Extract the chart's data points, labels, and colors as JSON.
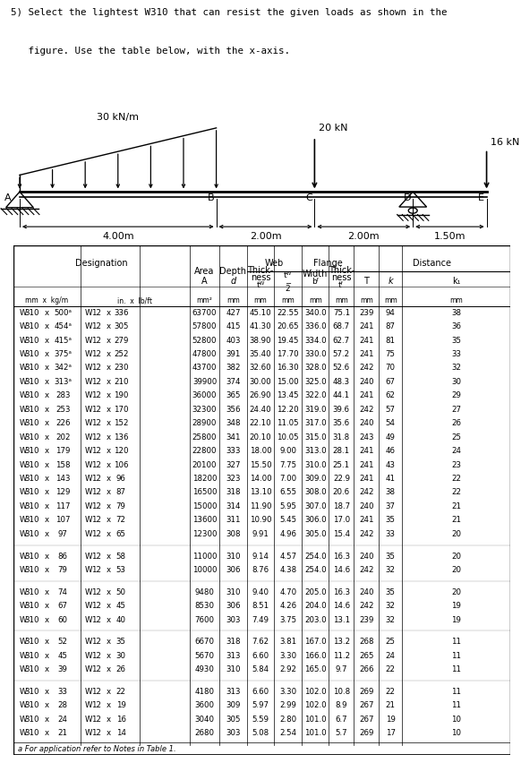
{
  "title_line1": "5) Select the lightest W310 that can resist the given loads as shown in the",
  "title_line2": "   figure. Use the table below, with the x-axis.",
  "dist_load_label": "30 kN/m",
  "load_20kN": "20 kN",
  "load_16kN": "16 kN",
  "spans": [
    "4.00m",
    "2.00m",
    "2.00m",
    "1.50m"
  ],
  "beam_labels": [
    "A",
    "B",
    "C",
    "D",
    "E"
  ],
  "footnote": "a For application refer to Notes in Table 1.",
  "group_breaks": [
    16,
    18,
    21,
    24
  ],
  "table_data": [
    [
      "W",
      "310",
      "x",
      "500ᵃ",
      "W",
      "12",
      "x",
      "336",
      "63700",
      "427",
      "45.10",
      "22.55",
      "340.0",
      "75.1",
      "239",
      "94",
      "38"
    ],
    [
      "W",
      "310",
      "x",
      "454ᵃ",
      "W",
      "12",
      "x",
      "305",
      "57800",
      "415",
      "41.30",
      "20.65",
      "336.0",
      "68.7",
      "241",
      "87",
      "36"
    ],
    [
      "W",
      "310",
      "x",
      "415ᵃ",
      "W",
      "12",
      "x",
      "279",
      "52800",
      "403",
      "38.90",
      "19.45",
      "334.0",
      "62.7",
      "241",
      "81",
      "35"
    ],
    [
      "W",
      "310",
      "x",
      "375ᵃ",
      "W",
      "12",
      "x",
      "252",
      "47800",
      "391",
      "35.40",
      "17.70",
      "330.0",
      "57.2",
      "241",
      "75",
      "33"
    ],
    [
      "W",
      "310",
      "x",
      "342ᵃ",
      "W",
      "12",
      "x",
      "230",
      "43700",
      "382",
      "32.60",
      "16.30",
      "328.0",
      "52.6",
      "242",
      "70",
      "32"
    ],
    [
      "W",
      "310",
      "x",
      "313ᵃ",
      "W",
      "12",
      "x",
      "210",
      "39900",
      "374",
      "30.00",
      "15.00",
      "325.0",
      "48.3",
      "240",
      "67",
      "30"
    ],
    [
      "W",
      "310",
      "x",
      "283",
      "W",
      "12",
      "x",
      "190",
      "36000",
      "365",
      "26.90",
      "13.45",
      "322.0",
      "44.1",
      "241",
      "62",
      "29"
    ],
    [
      "W",
      "310",
      "x",
      "253",
      "W",
      "12",
      "x",
      "170",
      "32300",
      "356",
      "24.40",
      "12.20",
      "319.0",
      "39.6",
      "242",
      "57",
      "27"
    ],
    [
      "W",
      "310",
      "x",
      "226",
      "W",
      "12",
      "x",
      "152",
      "28900",
      "348",
      "22.10",
      "11.05",
      "317.0",
      "35.6",
      "240",
      "54",
      "26"
    ],
    [
      "W",
      "310",
      "x",
      "202",
      "W",
      "12",
      "x",
      "136",
      "25800",
      "341",
      "20.10",
      "10.05",
      "315.0",
      "31.8",
      "243",
      "49",
      "25"
    ],
    [
      "W",
      "310",
      "x",
      "179",
      "W",
      "12",
      "x",
      "120",
      "22800",
      "333",
      "18.00",
      "9.00",
      "313.0",
      "28.1",
      "241",
      "46",
      "24"
    ],
    [
      "W",
      "310",
      "x",
      "158",
      "W",
      "12",
      "x",
      "106",
      "20100",
      "327",
      "15.50",
      "7.75",
      "310.0",
      "25.1",
      "241",
      "43",
      "23"
    ],
    [
      "W",
      "310",
      "x",
      "143",
      "W",
      "12",
      "x",
      "96",
      "18200",
      "323",
      "14.00",
      "7.00",
      "309.0",
      "22.9",
      "241",
      "41",
      "22"
    ],
    [
      "W",
      "310",
      "x",
      "129",
      "W",
      "12",
      "x",
      "87",
      "16500",
      "318",
      "13.10",
      "6.55",
      "308.0",
      "20.6",
      "242",
      "38",
      "22"
    ],
    [
      "W",
      "310",
      "x",
      "117",
      "W",
      "12",
      "x",
      "79",
      "15000",
      "314",
      "11.90",
      "5.95",
      "307.0",
      "18.7",
      "240",
      "37",
      "21"
    ],
    [
      "W",
      "310",
      "x",
      "107",
      "W",
      "12",
      "x",
      "72",
      "13600",
      "311",
      "10.90",
      "5.45",
      "306.0",
      "17.0",
      "241",
      "35",
      "21"
    ],
    [
      "W",
      "310",
      "x",
      "97",
      "W",
      "12",
      "x",
      "65",
      "12300",
      "308",
      "9.91",
      "4.96",
      "305.0",
      "15.4",
      "242",
      "33",
      "20"
    ],
    [
      "W",
      "310",
      "x",
      "86",
      "W",
      "12",
      "x",
      "58",
      "11000",
      "310",
      "9.14",
      "4.57",
      "254.0",
      "16.3",
      "240",
      "35",
      "20"
    ],
    [
      "W",
      "310",
      "x",
      "79",
      "W",
      "12",
      "x",
      "53",
      "10000",
      "306",
      "8.76",
      "4.38",
      "254.0",
      "14.6",
      "242",
      "32",
      "20"
    ],
    [
      "W",
      "310",
      "x",
      "74",
      "W",
      "12",
      "x",
      "50",
      "9480",
      "310",
      "9.40",
      "4.70",
      "205.0",
      "16.3",
      "240",
      "35",
      "20"
    ],
    [
      "W",
      "310",
      "x",
      "67",
      "W",
      "12",
      "x",
      "45",
      "8530",
      "306",
      "8.51",
      "4.26",
      "204.0",
      "14.6",
      "242",
      "32",
      "19"
    ],
    [
      "W",
      "310",
      "x",
      "60",
      "W",
      "12",
      "x",
      "40",
      "7600",
      "303",
      "7.49",
      "3.75",
      "203.0",
      "13.1",
      "239",
      "32",
      "19"
    ],
    [
      "W",
      "310",
      "x",
      "52",
      "W",
      "12",
      "x",
      "35",
      "6670",
      "318",
      "7.62",
      "3.81",
      "167.0",
      "13.2",
      "268",
      "25",
      "11"
    ],
    [
      "W",
      "310",
      "x",
      "45",
      "W",
      "12",
      "x",
      "30",
      "5670",
      "313",
      "6.60",
      "3.30",
      "166.0",
      "11.2",
      "265",
      "24",
      "11"
    ],
    [
      "W",
      "310",
      "x",
      "39",
      "W",
      "12",
      "x",
      "26",
      "4930",
      "310",
      "5.84",
      "2.92",
      "165.0",
      "9.7",
      "266",
      "22",
      "11"
    ],
    [
      "W",
      "310",
      "x",
      "33",
      "W",
      "12",
      "x",
      "22",
      "4180",
      "313",
      "6.60",
      "3.30",
      "102.0",
      "10.8",
      "269",
      "22",
      "11"
    ],
    [
      "W",
      "310",
      "x",
      "28",
      "W",
      "12",
      "x",
      "19",
      "3600",
      "309",
      "5.97",
      "2.99",
      "102.0",
      "8.9",
      "267",
      "21",
      "11"
    ],
    [
      "W",
      "310",
      "x",
      "24",
      "W",
      "12",
      "x",
      "16",
      "3040",
      "305",
      "5.59",
      "2.80",
      "101.0",
      "6.7",
      "267",
      "19",
      "10"
    ],
    [
      "W",
      "310",
      "x",
      "21",
      "W",
      "12",
      "x",
      "14",
      "2680",
      "303",
      "5.08",
      "2.54",
      "101.0",
      "5.7",
      "269",
      "17",
      "10"
    ]
  ]
}
